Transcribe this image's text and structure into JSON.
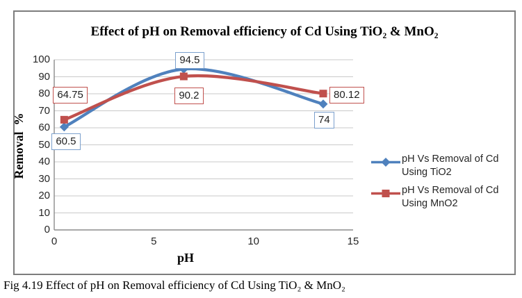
{
  "figure": {
    "caption": "Fig 4.19 Effect of pH on Removal efficiency of Cd Using TiO₂ & MnO₂"
  },
  "chart_data": {
    "type": "line",
    "title": "Effect of pH on Removal efficiency of Cd Using TiO₂ & MnO₂",
    "xlabel": "pH",
    "ylabel": "Removal  %",
    "xlim": [
      0,
      15
    ],
    "ylim": [
      0,
      100
    ],
    "x_ticks": [
      0,
      5,
      10,
      15
    ],
    "y_ticks": [
      0,
      10,
      20,
      30,
      40,
      50,
      60,
      70,
      80,
      90,
      100
    ],
    "grid": "horizontal",
    "gridline_color": "#c9c9c9",
    "axis_color": "#8c8c8c",
    "legend_position": "right",
    "smooth_lines": true,
    "series": [
      {
        "id": "tio2",
        "name": "pH Vs Removal of Cd Using TiO2",
        "color": "#4F81BD",
        "marker": "diamond",
        "label_border": "#7ba0cd",
        "x": [
          0.5,
          6.5,
          13.5
        ],
        "y": [
          60.5,
          94.5,
          74
        ],
        "labels": [
          {
            "text": "60.5",
            "dx": -18,
            "dy": 9
          },
          {
            "text": "94.5",
            "dx": -12,
            "dy": -24
          },
          {
            "text": "74",
            "dx": -13,
            "dy": 11
          }
        ]
      },
      {
        "id": "mno2",
        "name": "pH Vs Removal of Cd Using MnO2",
        "color": "#C0504D",
        "marker": "square",
        "label_border": "#C0504D",
        "x": [
          0.5,
          6.5,
          13.5
        ],
        "y": [
          64.75,
          90.2,
          80.12
        ],
        "labels": [
          {
            "text": "64.75",
            "dx": -16,
            "dy": -47
          },
          {
            "text": "90.2",
            "dx": -13,
            "dy": 16
          },
          {
            "text": "80.12",
            "dx": 9,
            "dy": -10
          }
        ]
      }
    ]
  }
}
